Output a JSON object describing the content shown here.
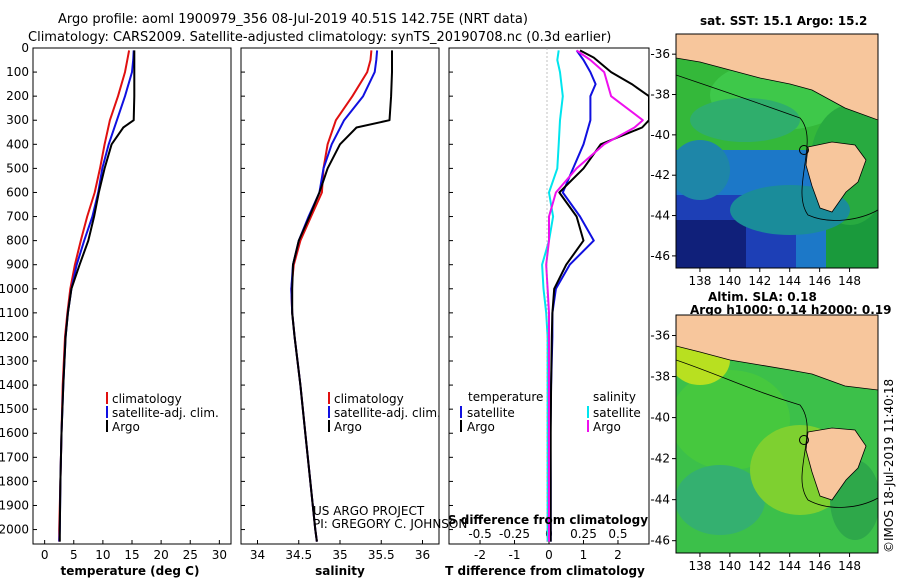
{
  "titles": {
    "line1": "Argo profile: aoml 1900979_356 08-Jul-2019 40.51S 142.75E (NRT data)",
    "line2": "Climatology: CARS2009. Satellite-adjusted climatology: synTS_20190708.nc (0.3d earlier)"
  },
  "credits": {
    "project": "US ARGO PROJECT",
    "pi": "PI: GREGORY C. JOHNSON",
    "imos": "©IMOS 18-Jul-2019 11:40:18"
  },
  "map_labels": {
    "sst": "sat. SST: 15.1 Argo: 15.2",
    "altim": "Altim. SLA: 0.18",
    "argo_h": "Argo h1000: 0.14 h2000: 0.19"
  },
  "colors": {
    "climatology": "#e01010",
    "satellite": "#1010e0",
    "argo": "#000000",
    "sal_satellite": "#00e5ee",
    "sal_argo": "#ee10ee",
    "land": "#f7c69c"
  },
  "chart_data": [
    {
      "type": "line",
      "panel": "temperature",
      "xlabel": "temperature (deg C)",
      "xlim": [
        -2,
        32
      ],
      "xticks": [
        "0",
        "5",
        "10",
        "15",
        "20",
        "25",
        "30"
      ],
      "ylim": [
        0,
        2060
      ],
      "yticks": [
        "0",
        "100",
        "200",
        "300",
        "400",
        "500",
        "600",
        "700",
        "800",
        "900",
        "1000",
        "1100",
        "1200",
        "1300",
        "1400",
        "1500",
        "1600",
        "1700",
        "1800",
        "1900",
        "2000"
      ],
      "legend": [
        "climatology",
        "satellite-adj. clim.",
        "Argo"
      ],
      "series": [
        {
          "name": "climatology",
          "color": "#e01010",
          "depth": [
            10,
            50,
            100,
            200,
            300,
            400,
            500,
            600,
            700,
            800,
            900,
            1000,
            1100,
            1200,
            1400,
            1600,
            1800,
            2000,
            2050
          ],
          "values": [
            14.5,
            14.2,
            13.8,
            12.6,
            11.2,
            10.3,
            9.5,
            8.6,
            7.3,
            6.2,
            5.2,
            4.4,
            3.9,
            3.5,
            3.1,
            2.9,
            2.7,
            2.5,
            2.5
          ]
        },
        {
          "name": "satellite-adj. clim.",
          "color": "#1010e0",
          "depth": [
            10,
            50,
            100,
            200,
            300,
            400,
            500,
            600,
            700,
            800,
            900,
            1000,
            1100,
            1200,
            1400,
            1600,
            1800,
            2000,
            2050
          ],
          "values": [
            15.3,
            15.2,
            15.0,
            13.8,
            12.4,
            11.0,
            9.9,
            9.2,
            8.2,
            6.8,
            5.5,
            4.6,
            4.0,
            3.6,
            3.2,
            2.9,
            2.7,
            2.6,
            2.5
          ]
        },
        {
          "name": "Argo",
          "color": "#000000",
          "depth": [
            10,
            100,
            200,
            300,
            330,
            400,
            500,
            600,
            700,
            800,
            900,
            1000,
            1100,
            1200,
            1400,
            1600,
            1800,
            2000,
            2050
          ],
          "values": [
            15.4,
            15.4,
            15.4,
            15.3,
            13.5,
            11.5,
            10.3,
            9.3,
            8.5,
            7.5,
            6.0,
            4.6,
            4.0,
            3.6,
            3.2,
            2.9,
            2.7,
            2.6,
            2.6
          ]
        }
      ]
    },
    {
      "type": "line",
      "panel": "salinity",
      "xlabel": "salinity",
      "xlim": [
        33.8,
        36.2
      ],
      "xticks": [
        "34",
        "34.5",
        "35",
        "35.5",
        "36"
      ],
      "ylim": [
        0,
        2060
      ],
      "legend": [
        "climatology",
        "satellite-adj. clim.",
        "Argo"
      ],
      "series": [
        {
          "name": "climatology",
          "color": "#e01010",
          "depth": [
            10,
            50,
            100,
            200,
            300,
            400,
            500,
            600,
            700,
            800,
            900,
            1000,
            1100,
            1200,
            1400,
            1600,
            1800,
            2000,
            2050
          ],
          "values": [
            35.38,
            35.37,
            35.33,
            35.15,
            34.95,
            34.85,
            34.8,
            34.78,
            34.65,
            34.52,
            34.44,
            34.41,
            34.42,
            34.45,
            34.52,
            34.58,
            34.64,
            34.7,
            34.72
          ]
        },
        {
          "name": "satellite-adj. clim.",
          "color": "#1010e0",
          "depth": [
            10,
            50,
            100,
            200,
            300,
            400,
            500,
            600,
            700,
            800,
            900,
            1000,
            1100,
            1200,
            1400,
            1600,
            1800,
            2000,
            2050
          ],
          "values": [
            35.45,
            35.44,
            35.42,
            35.28,
            35.05,
            34.9,
            34.8,
            34.75,
            34.62,
            34.5,
            34.43,
            34.41,
            34.42,
            34.45,
            34.52,
            34.58,
            34.64,
            34.7,
            34.72
          ]
        },
        {
          "name": "Argo",
          "color": "#000000",
          "depth": [
            10,
            100,
            200,
            300,
            330,
            400,
            500,
            600,
            700,
            800,
            900,
            1000,
            1100,
            1200,
            1400,
            1600,
            1800,
            2000,
            2050
          ],
          "values": [
            35.63,
            35.63,
            35.62,
            35.6,
            35.2,
            35.0,
            34.85,
            34.75,
            34.63,
            34.5,
            34.43,
            34.42,
            34.42,
            34.45,
            34.52,
            34.58,
            34.64,
            34.7,
            34.72
          ]
        }
      ]
    },
    {
      "type": "line",
      "panel": "difference",
      "xlabel": "T difference from climatology",
      "xlabel_top": "S difference from climatology",
      "xlim": [
        -2.9,
        2.9
      ],
      "xticks": [
        "-2",
        "-1",
        "0",
        "1",
        "2"
      ],
      "xticks_top": [
        "-0.5",
        "-0.25",
        "0",
        "0.25",
        "0.5"
      ],
      "ylim": [
        0,
        2060
      ],
      "legend_left_title": "temperature",
      "legend_right_title": "salinity",
      "legend_left": [
        "satellite",
        "Argo"
      ],
      "legend_right": [
        "satellite",
        "Argo"
      ],
      "series": [
        {
          "name": "temperature satellite",
          "color": "#1010e0",
          "depth": [
            10,
            50,
            100,
            150,
            200,
            300,
            400,
            500,
            600,
            700,
            800,
            900,
            1000,
            1100,
            1200,
            1400,
            1600,
            1800,
            2000,
            2050
          ],
          "values": [
            0.8,
            1.0,
            1.2,
            1.35,
            1.2,
            1.2,
            1.0,
            0.7,
            0.4,
            0.9,
            1.3,
            0.6,
            0.2,
            0.1,
            0.1,
            0.06,
            0.04,
            0.05,
            0.05,
            0.05
          ]
        },
        {
          "name": "temperature Argo",
          "color": "#000000",
          "depth": [
            10,
            40,
            100,
            150,
            200,
            300,
            330,
            400,
            500,
            600,
            700,
            800,
            900,
            1000,
            1100,
            1200,
            1400,
            1600,
            1800,
            2000,
            2050
          ],
          "values": [
            0.9,
            1.3,
            1.8,
            2.4,
            2.9,
            2.9,
            2.7,
            1.5,
            1.0,
            0.3,
            0.8,
            1.0,
            0.5,
            0.15,
            0.1,
            0.08,
            0.06,
            0.05,
            0.05,
            0.05,
            0.05
          ]
        },
        {
          "name": "salinity satellite",
          "color": "#00e5ee",
          "depth": [
            10,
            50,
            100,
            200,
            300,
            400,
            500,
            600,
            700,
            800,
            900,
            1000,
            1100,
            1200,
            1400,
            1600,
            1800,
            2000,
            2050
          ],
          "values": [
            0.07,
            0.06,
            0.08,
            0.1,
            0.08,
            0.07,
            0.06,
            0.0,
            0.03,
            0.0,
            -0.05,
            -0.04,
            -0.02,
            -0.01,
            -0.01,
            -0.01,
            -0.01,
            -0.01,
            -0.01
          ]
        },
        {
          "name": "salinity Argo",
          "color": "#ee10ee",
          "depth": [
            10,
            50,
            100,
            200,
            300,
            330,
            400,
            500,
            600,
            700,
            800,
            900,
            1000,
            1100,
            1200,
            1400,
            1600,
            1800,
            2000,
            2050
          ],
          "values": [
            0.2,
            0.3,
            0.4,
            0.45,
            0.68,
            0.62,
            0.4,
            0.2,
            0.05,
            0.0,
            0.0,
            -0.02,
            -0.01,
            0.0,
            0.0,
            0.0,
            0.0,
            0.0,
            0.0,
            0.0
          ]
        }
      ]
    }
  ],
  "maps": {
    "lon_ticks": [
      "138",
      "140",
      "142",
      "144",
      "146",
      "148"
    ],
    "lat_ticks": [
      "-36",
      "-38",
      "-40",
      "-42",
      "-44",
      "-46"
    ],
    "argo_position": {
      "lon": 142.75,
      "lat": -40.51
    }
  }
}
